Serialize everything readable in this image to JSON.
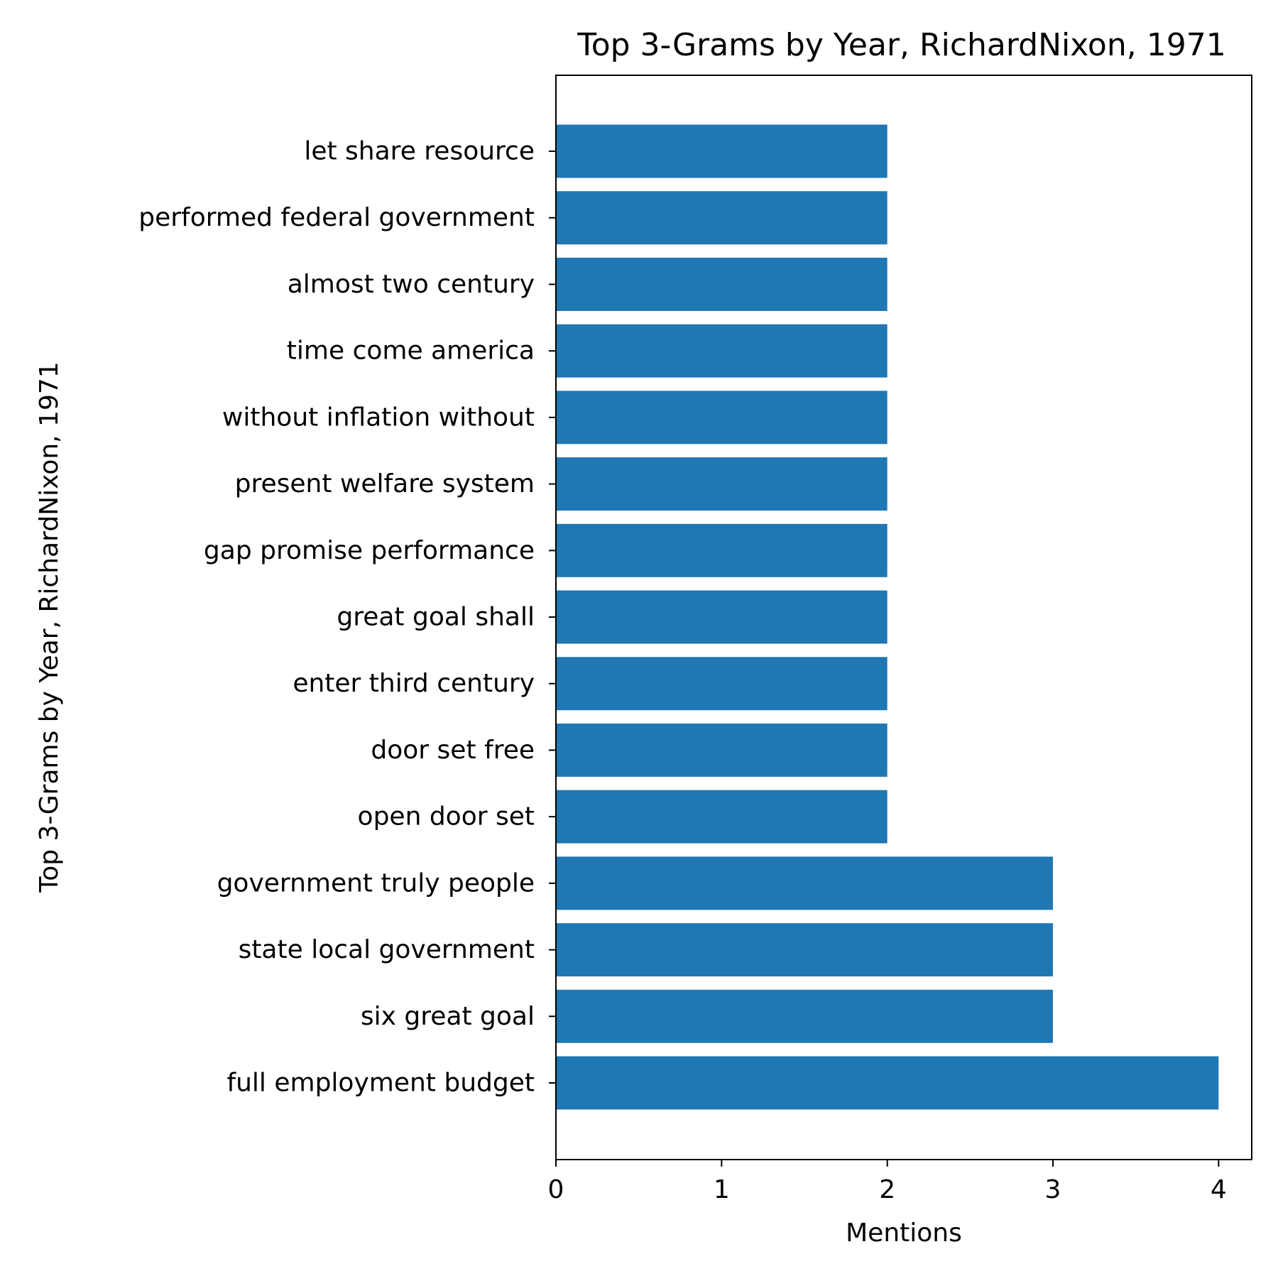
{
  "chart_data": {
    "type": "bar",
    "orientation": "horizontal",
    "title": "Top 3-Grams by Year, RichardNixon, 1971",
    "xlabel": "Mentions",
    "ylabel": "Top 3-Grams by Year, RichardNixon, 1971",
    "xlim": [
      0,
      4.2
    ],
    "xticks": [
      "0",
      "1",
      "2",
      "3",
      "4"
    ],
    "grid": false,
    "bar_color": "#1f77b4",
    "categories": [
      "full employment budget",
      "six great goal",
      "state local government",
      "government truly people",
      "open door set",
      "door set free",
      "enter third century",
      "great goal shall",
      "gap promise performance",
      "present welfare system",
      "without inflation without",
      "time come america",
      "almost two century",
      "performed federal government",
      "let share resource"
    ],
    "values": [
      4,
      3,
      3,
      3,
      2,
      2,
      2,
      2,
      2,
      2,
      2,
      2,
      2,
      2,
      2
    ]
  }
}
